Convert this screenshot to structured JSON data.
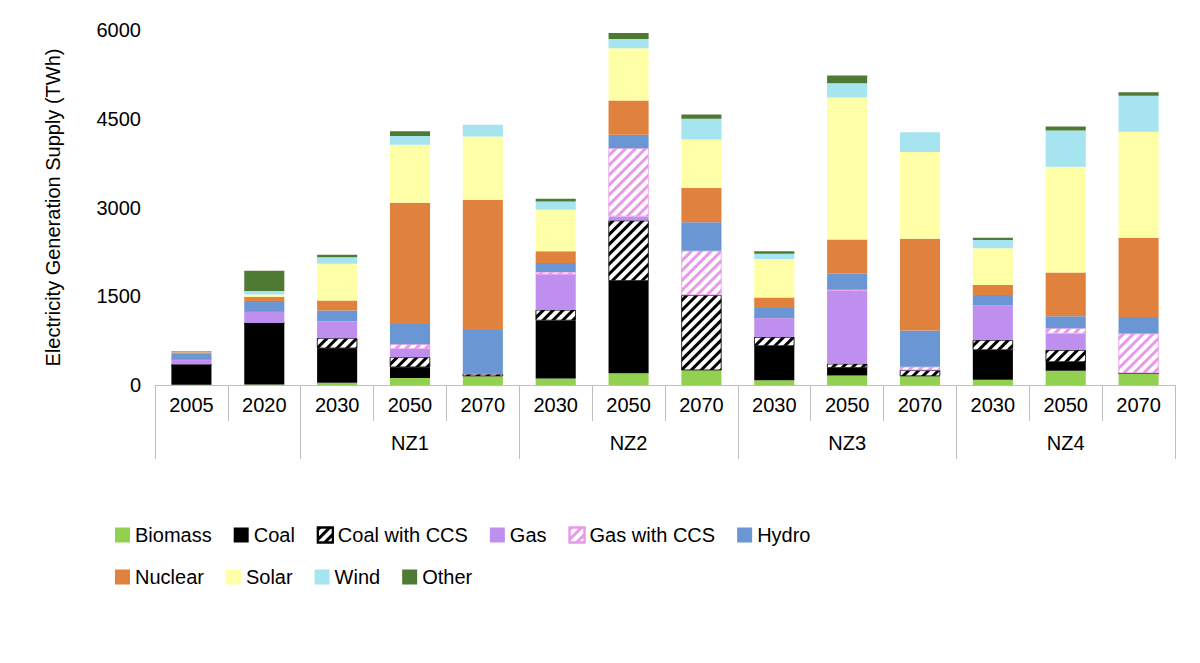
{
  "chart_data": {
    "type": "bar",
    "stacked": true,
    "grid": false,
    "legend": "bottom",
    "y_label": "Electricity Generation Supply (TWh)",
    "categories": [
      "2005",
      "2020",
      "2030",
      "2050",
      "2070",
      "2030",
      "2050",
      "2070",
      "2030",
      "2050",
      "2070",
      "2030",
      "2050",
      "2070"
    ],
    "groups": [
      null,
      null,
      "NZ1",
      "NZ1",
      "NZ1",
      "NZ2",
      "NZ2",
      "NZ2",
      "NZ3",
      "NZ3",
      "NZ3",
      "NZ4",
      "NZ4",
      "NZ4"
    ],
    "ylim": [
      0,
      6000
    ],
    "yticks": [
      0,
      1500,
      3000,
      4500,
      6000
    ],
    "series": [
      {
        "name": "Biomass",
        "color": "#92d050",
        "values": [
          5,
          10,
          40,
          120,
          150,
          110,
          200,
          250,
          80,
          160,
          150,
          90,
          240,
          200
        ]
      },
      {
        "name": "Coal",
        "color": "#000000",
        "values": [
          340,
          1040,
          580,
          180,
          0,
          980,
          1560,
          0,
          580,
          130,
          0,
          500,
          150,
          0
        ]
      },
      {
        "name": "Coal with CCS",
        "color": "#000000",
        "marker": "hatch",
        "values": [
          0,
          0,
          170,
          170,
          40,
          180,
          1020,
          1270,
          150,
          70,
          100,
          170,
          200,
          0
        ]
      },
      {
        "name": "Gas",
        "color": "#bf8fef",
        "values": [
          80,
          190,
          290,
          140,
          0,
          600,
          70,
          0,
          320,
          1230,
          0,
          590,
          280,
          0
        ]
      },
      {
        "name": "Gas with CCS",
        "color": "#e89ae8",
        "marker": "hatch",
        "values": [
          0,
          0,
          0,
          80,
          0,
          40,
          1150,
          750,
          0,
          20,
          60,
          0,
          90,
          670
        ]
      },
      {
        "name": "Hydro",
        "color": "#6a96d4",
        "values": [
          110,
          180,
          180,
          340,
          740,
          150,
          230,
          480,
          170,
          270,
          610,
          170,
          200,
          280
        ]
      },
      {
        "name": "Nuclear",
        "color": "#e0823d",
        "values": [
          20,
          70,
          170,
          2050,
          2200,
          200,
          580,
          580,
          180,
          580,
          1550,
          170,
          740,
          1340
        ]
      },
      {
        "name": "Solar",
        "color": "#ffffa8",
        "values": [
          0,
          40,
          620,
          980,
          1070,
          700,
          880,
          820,
          650,
          2400,
          1470,
          620,
          1790,
          1790
        ]
      },
      {
        "name": "Wind",
        "color": "#a6e4f0",
        "values": [
          10,
          60,
          110,
          150,
          200,
          140,
          160,
          350,
          90,
          240,
          330,
          140,
          610,
          610
        ]
      },
      {
        "name": "Other",
        "color": "#4e7a34",
        "values": [
          10,
          340,
          40,
          80,
          0,
          50,
          100,
          70,
          40,
          130,
          0,
          40,
          70,
          60
        ]
      }
    ]
  }
}
